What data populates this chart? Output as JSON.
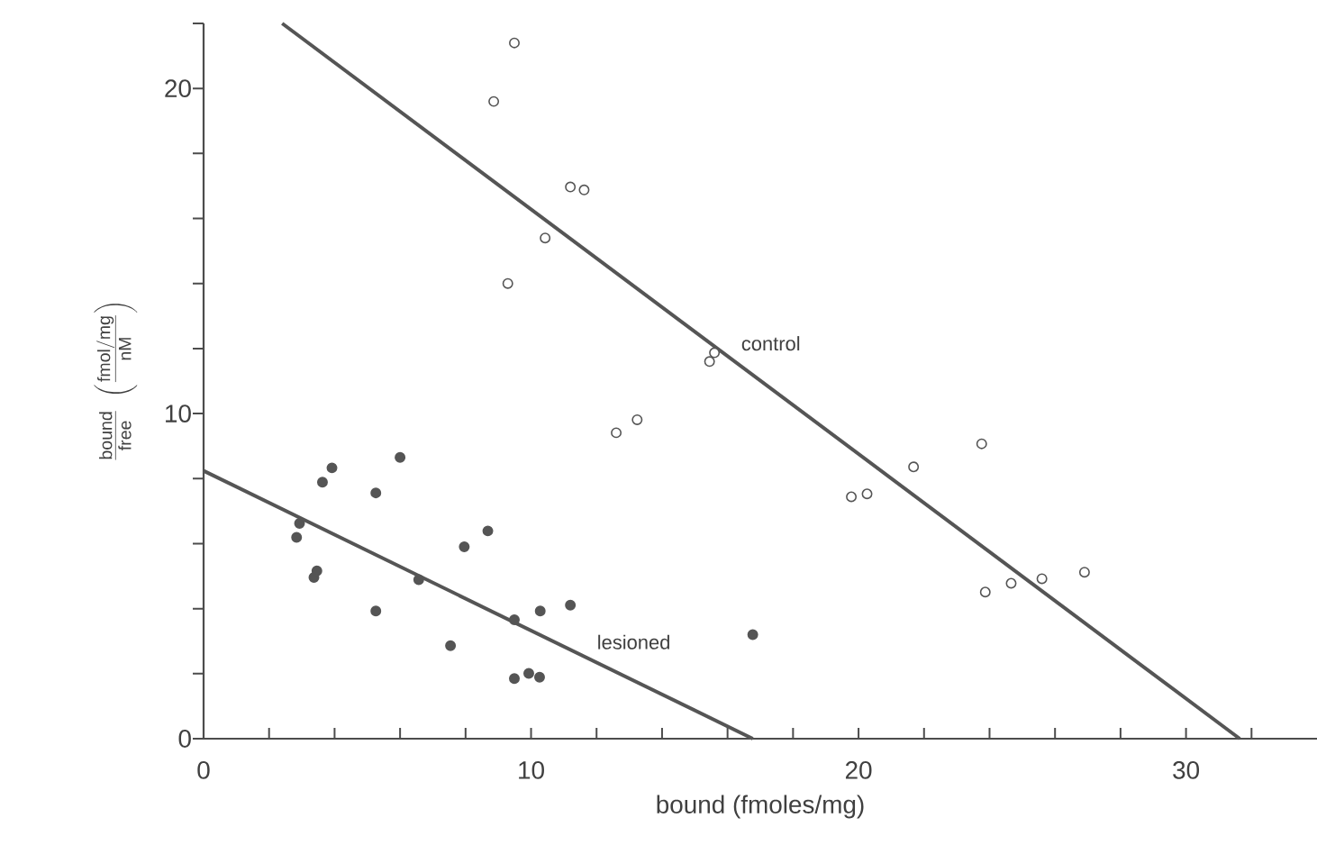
{
  "chart_data": {
    "type": "scatter",
    "xlabel": "bound (fmoles/mg)",
    "ylabel": "\\frac{\\mathrm{bound}}{\\mathrm{free}}\\;\\left(\\frac{\\mathrm{fmol/mg}}{\\mathrm{nM}}\\right)",
    "xlim": [
      0,
      34
    ],
    "ylim": [
      0,
      22
    ],
    "xticks": [
      0,
      {
        "value": 2,
        "label": null
      },
      {
        "value": 4,
        "label": null
      },
      {
        "value": 6,
        "label": null
      },
      {
        "value": 8,
        "label": null
      },
      10,
      {
        "value": 12,
        "label": null
      },
      {
        "value": 14,
        "label": null
      },
      {
        "value": 16,
        "label": null
      },
      {
        "value": 18,
        "label": null
      },
      20,
      {
        "value": 22,
        "label": null
      },
      {
        "value": 24,
        "label": null
      },
      {
        "value": 26,
        "label": null
      },
      {
        "value": 28,
        "label": null
      },
      30,
      {
        "value": 32,
        "label": null
      }
    ],
    "yticks": [
      {
        "value": 0,
        "label": "0"
      },
      {
        "value": 2,
        "label": null
      },
      {
        "value": 4,
        "label": null
      },
      {
        "value": 6,
        "label": null
      },
      {
        "value": 8,
        "label": null
      },
      10,
      {
        "value": 12,
        "label": null
      },
      {
        "value": 14,
        "label": null
      },
      {
        "value": 16,
        "label": null
      },
      {
        "value": 18,
        "label": null
      },
      20,
      {
        "value": 22,
        "label": null
      }
    ],
    "grid": false,
    "series": [
      {
        "color": "#555555",
        "marker": "circle",
        "x": [
          9.49,
          8.86,
          11.2,
          11.62,
          10.43,
          9.29,
          15.45,
          15.6,
          12.6,
          13.24,
          19.78,
          20.26,
          21.68,
          23.76,
          23.87,
          24.66,
          25.6,
          26.9
        ],
        "values": [
          21.4,
          19.6,
          16.97,
          16.88,
          15.4,
          14.0,
          11.6,
          11.87,
          9.41,
          9.81,
          7.44,
          7.53,
          8.36,
          9.07,
          4.51,
          4.78,
          4.92,
          5.12
        ]
      },
      {
        "color": "#555555",
        "marker": "circle",
        "x": [
          2.84,
          2.93,
          3.37,
          3.46,
          3.63,
          3.92,
          5.26,
          5.26,
          6.0,
          6.57,
          7.54,
          7.96,
          8.68,
          9.49,
          10.28,
          11.2,
          9.49,
          9.93,
          10.26,
          16.77
        ],
        "values": [
          6.19,
          6.62,
          4.96,
          5.16,
          7.89,
          8.33,
          7.56,
          3.93,
          8.65,
          4.89,
          2.86,
          5.9,
          6.39,
          3.66,
          3.93,
          4.11,
          1.85,
          2.01,
          1.89,
          3.2
        ]
      },
      {
        "type": "line",
        "name": "control",
        "color": "#555555",
        "marker": "none",
        "x": [
          2.4,
          31.64
        ],
        "values": [
          22.0,
          0
        ]
      },
      {
        "type": "line",
        "name": "lesioned",
        "color": "#555555",
        "marker": "none",
        "x": [
          0,
          16.77
        ],
        "values": [
          8.24,
          0
        ]
      }
    ]
  }
}
